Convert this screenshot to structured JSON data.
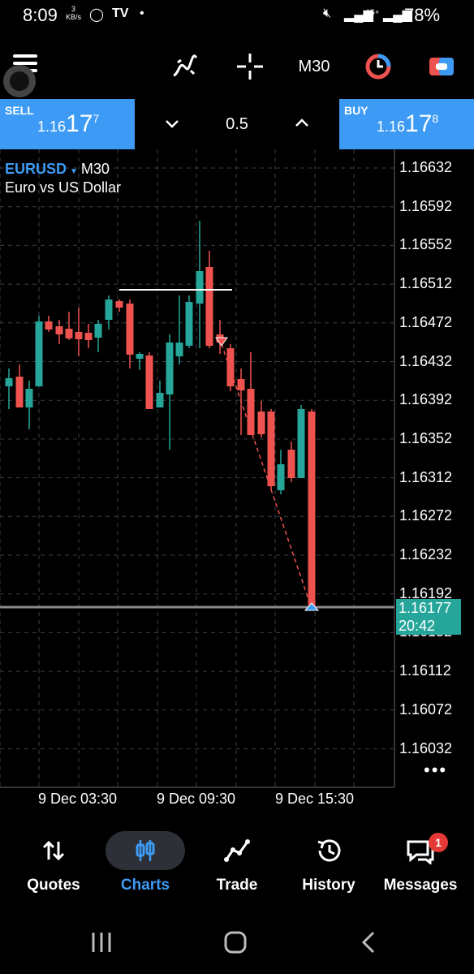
{
  "status_bar": {
    "time": "8:09",
    "network_speed": "3",
    "network_unit": "KB/s",
    "network_type": "4G+",
    "battery": "78%"
  },
  "toolbar": {
    "timeframe": "M30",
    "icons": [
      "menu-icon",
      "indicators-icon",
      "crosshair-icon",
      "objects-icon",
      "trade-icon"
    ]
  },
  "quote": {
    "sell_label": "SELL",
    "sell_prefix": "1.16",
    "sell_big": "17",
    "sell_sup": "7",
    "buy_label": "BUY",
    "buy_prefix": "1.16",
    "buy_big": "17",
    "buy_sup": "8",
    "lot": "0.5"
  },
  "chart": {
    "symbol": "EURUSD",
    "timeframe": "M30",
    "description": "Euro vs US Dollar",
    "price_labels": [
      "1.16632",
      "1.16592",
      "1.16552",
      "1.16512",
      "1.16472",
      "1.16432",
      "1.16392",
      "1.16352",
      "1.16312",
      "1.16272",
      "1.16232",
      "1.16192",
      "1.16152",
      "1.16112",
      "1.16072",
      "1.16032"
    ],
    "time_labels": [
      "9 Dec 03:30",
      "9 Dec 09:30",
      "9 Dec 15:30"
    ],
    "current_price": "1.16177",
    "countdown": "20:42",
    "colors": {
      "bull": "#26a69a",
      "bear": "#ef5350",
      "grid": "#3a3f47",
      "current_line": "#8a8a8a"
    }
  },
  "nav": {
    "items": [
      {
        "label": "Quotes",
        "icon": "arrows-updown-icon"
      },
      {
        "label": "Charts",
        "icon": "candles-icon"
      },
      {
        "label": "Trade",
        "icon": "trend-line-icon"
      },
      {
        "label": "History",
        "icon": "history-icon"
      },
      {
        "label": "Messages",
        "icon": "chat-icon"
      }
    ],
    "active": "Charts",
    "messages_badge": "1"
  }
}
